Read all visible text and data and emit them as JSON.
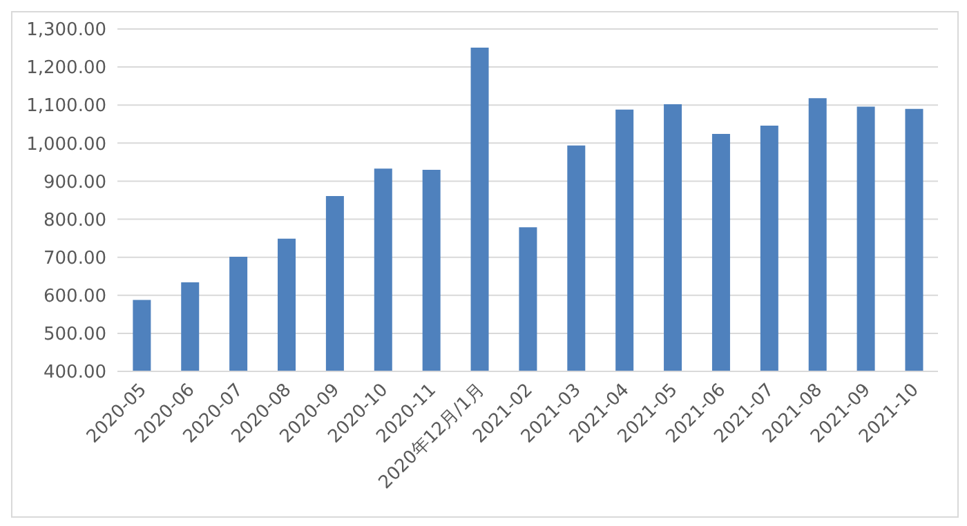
{
  "chart_data": {
    "type": "bar",
    "categories": [
      "2020-05",
      "2020-06",
      "2020-07",
      "2020-08",
      "2020-09",
      "2020-10",
      "2020-11",
      "2020年12月/1月",
      "2021-02",
      "2021-03",
      "2021-04",
      "2021-05",
      "2021-06",
      "2021-07",
      "2021-08",
      "2021-09",
      "2021-10"
    ],
    "values": [
      588,
      634,
      701,
      749,
      861,
      933,
      930,
      1251,
      779,
      994,
      1088,
      1102,
      1024,
      1046,
      1118,
      1096,
      1090
    ],
    "color": "#4f81bd",
    "ylim": [
      400,
      1300
    ],
    "yticks": [
      {
        "value": 400,
        "label": "400.00"
      },
      {
        "value": 500,
        "label": "500.00"
      },
      {
        "value": 600,
        "label": "600.00"
      },
      {
        "value": 700,
        "label": "700.00"
      },
      {
        "value": 800,
        "label": "800.00"
      },
      {
        "value": 900,
        "label": "900.00"
      },
      {
        "value": 1000,
        "label": "1,000.00"
      },
      {
        "value": 1100,
        "label": "1,100.00"
      },
      {
        "value": 1200,
        "label": "1,200.00"
      },
      {
        "value": 1300,
        "label": "1,300.00"
      }
    ],
    "grid": "y"
  }
}
